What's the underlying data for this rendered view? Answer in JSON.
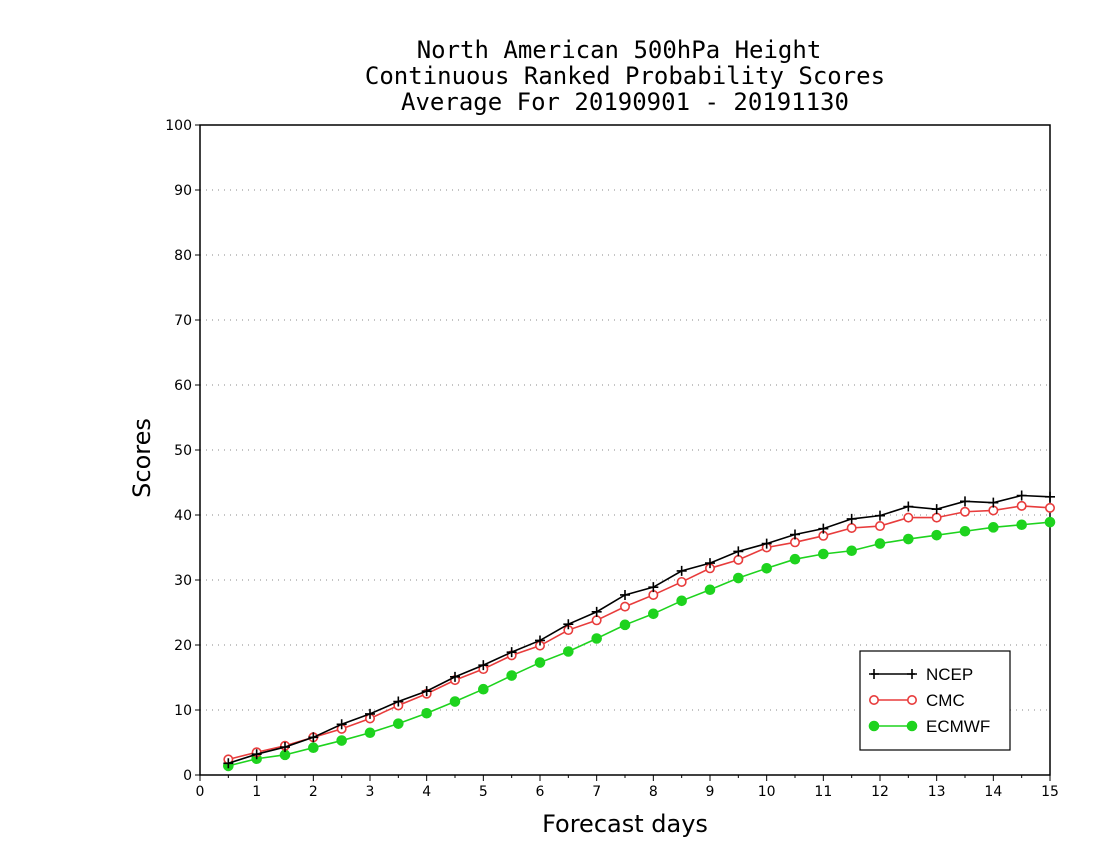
{
  "chart_data": {
    "type": "line",
    "title_lines": [
      "North American 500hPa Height",
      "Continuous Ranked Probability Scores",
      "Average For 20190901 - 20191130"
    ],
    "xlabel": "Forecast days",
    "ylabel": "Scores",
    "xlim": [
      0,
      15
    ],
    "ylim": [
      0,
      100
    ],
    "x_ticks": [
      "0",
      "1",
      "2",
      "3",
      "4",
      "5",
      "6",
      "7",
      "8",
      "9",
      "10",
      "11",
      "12",
      "13",
      "14",
      "15"
    ],
    "y_ticks": [
      "0",
      "10",
      "20",
      "30",
      "40",
      "50",
      "60",
      "70",
      "80",
      "90",
      "100"
    ],
    "grid": "horizontal dotted",
    "legend_position": "bottom-right",
    "x": [
      0.5,
      1,
      1.5,
      2,
      2.5,
      3,
      3.5,
      4,
      4.5,
      5,
      5.5,
      6,
      6.5,
      7,
      7.5,
      8,
      8.5,
      9,
      9.5,
      10,
      10.5,
      11,
      11.5,
      12,
      12.5,
      13,
      13.5,
      14,
      14.5,
      15
    ],
    "series": [
      {
        "name": "NCEP",
        "color": "#000000",
        "marker": "plus",
        "values": [
          1.8,
          3.2,
          4.3,
          5.8,
          7.8,
          9.4,
          11.3,
          12.9,
          15.1,
          16.9,
          18.9,
          20.7,
          23.2,
          25.1,
          27.7,
          28.9,
          31.4,
          32.6,
          34.4,
          35.6,
          37.0,
          37.9,
          39.4,
          39.9,
          41.3,
          40.9,
          42.1,
          41.9,
          43.0,
          42.8
        ]
      },
      {
        "name": "CMC",
        "color": "#e83c3c",
        "marker": "open-circle",
        "values": [
          2.4,
          3.5,
          4.5,
          5.8,
          7.1,
          8.7,
          10.7,
          12.5,
          14.6,
          16.3,
          18.4,
          19.9,
          22.3,
          23.8,
          25.9,
          27.7,
          29.7,
          31.8,
          33.1,
          35.0,
          35.8,
          36.8,
          38.0,
          38.3,
          39.6,
          39.6,
          40.5,
          40.7,
          41.4,
          41.1
        ]
      },
      {
        "name": "ECMWF",
        "color": "#1ed31e",
        "marker": "filled-circle",
        "values": [
          1.4,
          2.5,
          3.1,
          4.2,
          5.3,
          6.5,
          7.9,
          9.5,
          11.3,
          13.2,
          15.3,
          17.3,
          19.0,
          21.0,
          23.1,
          24.8,
          26.8,
          28.5,
          30.3,
          31.8,
          33.2,
          34.0,
          34.5,
          35.6,
          36.3,
          36.9,
          37.5,
          38.1,
          38.5,
          38.9
        ]
      }
    ]
  }
}
